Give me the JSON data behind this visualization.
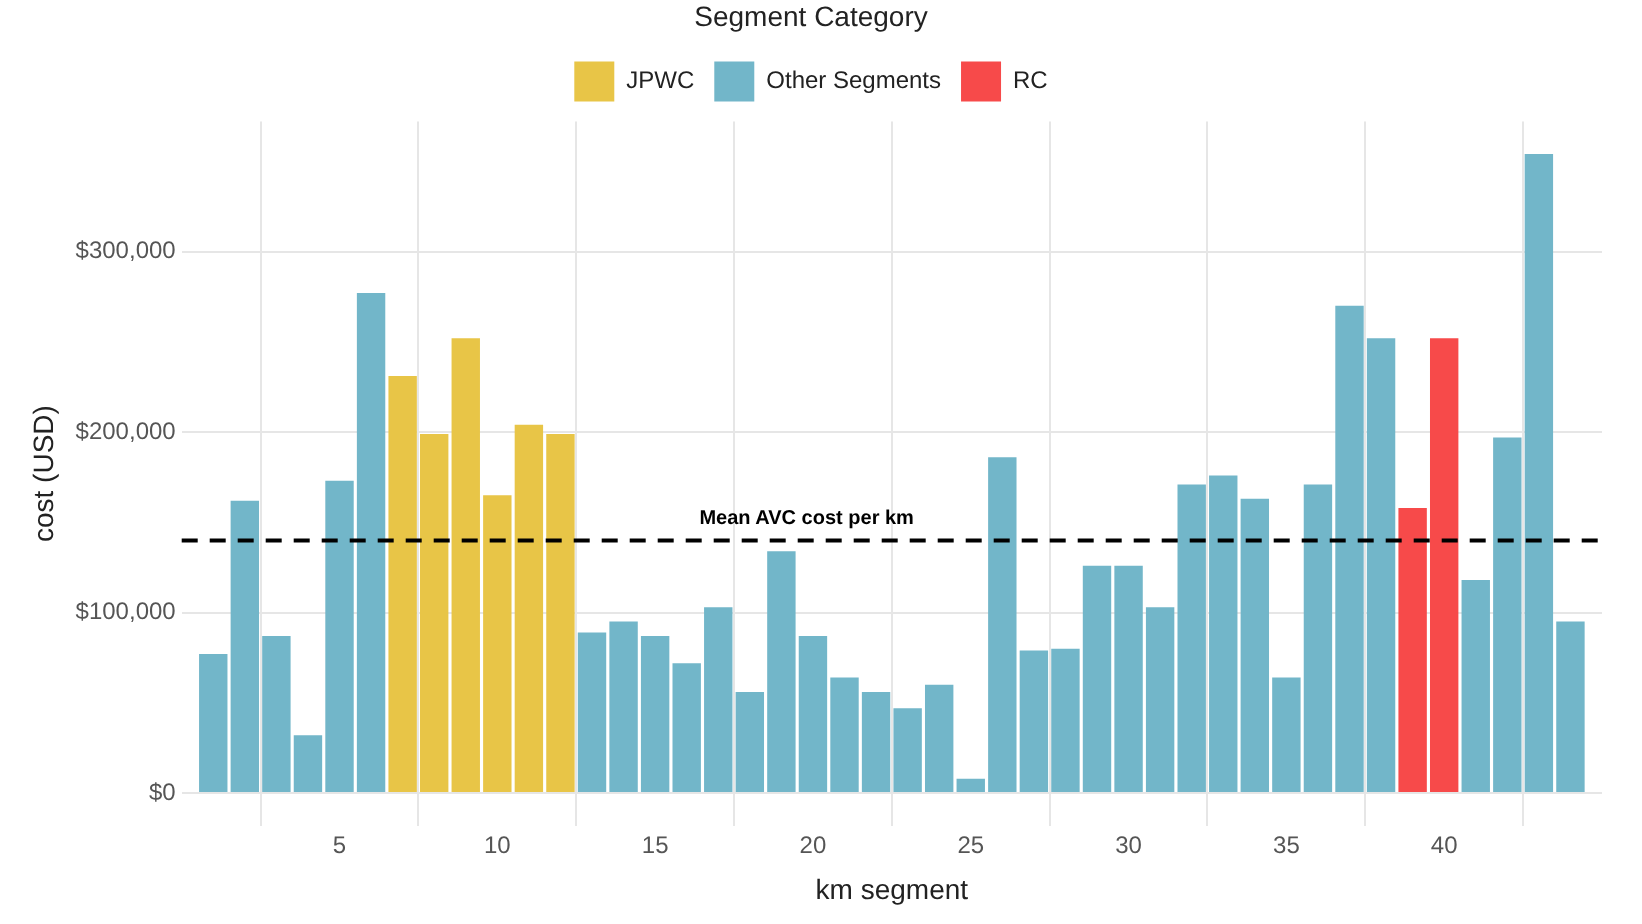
{
  "chart_data": {
    "type": "bar",
    "xlabel": "km segment",
    "ylabel": "cost (USD)",
    "legend_title": "Segment Category",
    "legend": "top",
    "grid": true,
    "x": [
      1,
      2,
      3,
      4,
      5,
      6,
      7,
      8,
      9,
      10,
      11,
      12,
      13,
      14,
      15,
      16,
      17,
      18,
      19,
      20,
      21,
      22,
      23,
      24,
      25,
      26,
      27,
      28,
      29,
      30,
      31,
      32,
      33,
      34,
      35,
      36,
      37,
      38,
      39,
      40,
      41,
      42,
      43,
      44
    ],
    "xlim": [
      0,
      45
    ],
    "xticks": [
      5,
      10,
      15,
      20,
      25,
      30,
      35,
      40
    ],
    "ylim": [
      -18000,
      372000
    ],
    "yticks": [
      {
        "value": 0,
        "label": "$0"
      },
      {
        "value": 100000,
        "label": "$100,000"
      },
      {
        "value": 200000,
        "label": "$200,000"
      },
      {
        "value": 300000,
        "label": "$300,000"
      }
    ],
    "series": [
      {
        "name": "JPWC",
        "color": "#e8c547",
        "values": [
          null,
          null,
          null,
          null,
          null,
          null,
          231000,
          199000,
          252000,
          165000,
          204000,
          199000,
          null,
          null,
          null,
          null,
          null,
          null,
          null,
          null,
          null,
          null,
          null,
          null,
          null,
          null,
          null,
          null,
          null,
          null,
          null,
          null,
          null,
          null,
          null,
          null,
          null,
          null,
          null,
          null,
          null,
          null,
          null,
          null
        ]
      },
      {
        "name": "Other Segments",
        "color": "#72b6c9",
        "values": [
          77000,
          162000,
          87000,
          32000,
          173000,
          277000,
          null,
          null,
          null,
          null,
          null,
          null,
          89000,
          95000,
          87000,
          72000,
          103000,
          56000,
          134000,
          87000,
          64000,
          56000,
          47000,
          60000,
          8000,
          186000,
          79000,
          80000,
          126000,
          126000,
          103000,
          171000,
          176000,
          163000,
          64000,
          171000,
          270000,
          252000,
          null,
          null,
          118000,
          197000,
          354000,
          95000
        ]
      },
      {
        "name": "RC",
        "color": "#f74a4a",
        "values": [
          null,
          null,
          null,
          null,
          null,
          null,
          null,
          null,
          null,
          null,
          null,
          null,
          null,
          null,
          null,
          null,
          null,
          null,
          null,
          null,
          null,
          null,
          null,
          null,
          null,
          null,
          null,
          null,
          null,
          null,
          null,
          null,
          null,
          null,
          null,
          null,
          null,
          null,
          158000,
          252000,
          null,
          null,
          null,
          null
        ]
      }
    ],
    "ref_lines": [
      {
        "axis": "y",
        "value": 140000,
        "label": "Mean AVC cost per km",
        "color": "#000000",
        "line_style": "dashed"
      }
    ]
  }
}
